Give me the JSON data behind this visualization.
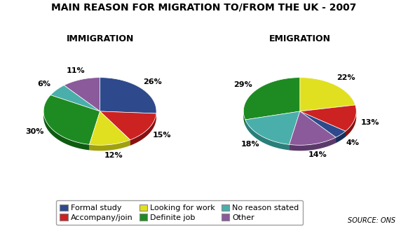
{
  "title": "MAIN REASON FOR MIGRATION TO/FROM THE UK - 2007",
  "immigration_label": "IMMIGRATION",
  "emigration_label": "EMIGRATION",
  "source": "SOURCE: ONS",
  "categories": [
    "Formal study",
    "Accompany/join",
    "Looking for work",
    "Definite job",
    "No reason stated",
    "Other"
  ],
  "colors": [
    "#2E4A8C",
    "#CC2222",
    "#E0E020",
    "#1E8B22",
    "#4AAFAA",
    "#8B5A9B"
  ],
  "dark_colors": [
    "#1A2D5A",
    "#881111",
    "#A0A010",
    "#0E5B12",
    "#2A7F7A",
    "#5B3A6B"
  ],
  "immigration_values": [
    26,
    15,
    12,
    30,
    6,
    11
  ],
  "emigration_values": [
    4,
    13,
    22,
    29,
    18,
    14
  ],
  "immigration_labels": [
    "26%",
    "15%",
    "12%",
    "30%",
    "6%",
    "11%"
  ],
  "emigration_labels": [
    "4%",
    "13%",
    "22%",
    "29%",
    "18%",
    "14%"
  ],
  "background_color": "#FFFFFF",
  "legend_box_color": "#FFFFFF",
  "title_fontsize": 10,
  "subtitle_fontsize": 9,
  "label_fontsize": 8,
  "legend_fontsize": 8
}
